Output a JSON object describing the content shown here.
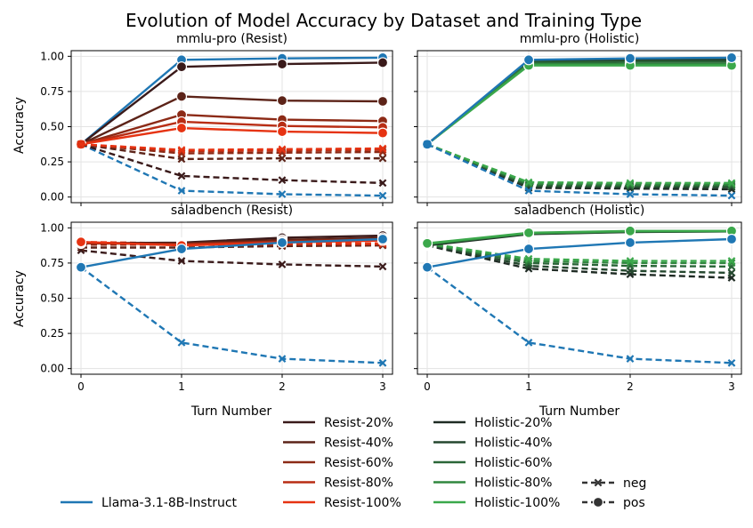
{
  "title": "Evolution of Model Accuracy by Dataset and Training Type",
  "xlabel": "Turn Number",
  "ylabel": "Accuracy",
  "x_ticks": [
    "0",
    "1",
    "2",
    "3"
  ],
  "y_ticks": [
    "0.00",
    "0.25",
    "0.50",
    "0.75",
    "1.00"
  ],
  "colors": {
    "llama": "#1f77b4",
    "resist": [
      "#3a1a1a",
      "#5c2318",
      "#8c2a16",
      "#b82d14",
      "#e63312"
    ],
    "holistic": [
      "#1f2b24",
      "#24472e",
      "#2a6638",
      "#30873f",
      "#3ba84b"
    ],
    "negpos": "#333333"
  },
  "legend": {
    "llama": "Llama-3.1-8B-Instruct",
    "resist": [
      "Resist-20%",
      "Resist-40%",
      "Resist-60%",
      "Resist-80%",
      "Resist-100%"
    ],
    "holistic": [
      "Holistic-20%",
      "Holistic-40%",
      "Holistic-60%",
      "Holistic-80%",
      "Holistic-100%"
    ],
    "neg": "neg",
    "pos": "pos"
  },
  "chart_data": [
    {
      "type": "line",
      "title": "mmlu-pro (Resist)",
      "x": [
        0,
        1,
        2,
        3
      ],
      "ylim": [
        -0.04,
        1.04
      ],
      "series": [
        {
          "name": "Llama-3.1-8B-Instruct pos",
          "group": "llama",
          "idx": 0,
          "kind": "pos",
          "values": [
            0.375,
            0.975,
            0.985,
            0.99
          ]
        },
        {
          "name": "Llama-3.1-8B-Instruct neg",
          "group": "llama",
          "idx": 0,
          "kind": "neg",
          "values": [
            0.375,
            0.045,
            0.02,
            0.01
          ]
        },
        {
          "name": "Resist-20% pos",
          "group": "resist",
          "idx": 0,
          "kind": "pos",
          "values": [
            0.375,
            0.925,
            0.945,
            0.955
          ]
        },
        {
          "name": "Resist-40% pos",
          "group": "resist",
          "idx": 1,
          "kind": "pos",
          "values": [
            0.375,
            0.715,
            0.685,
            0.68
          ]
        },
        {
          "name": "Resist-60% pos",
          "group": "resist",
          "idx": 2,
          "kind": "pos",
          "values": [
            0.375,
            0.585,
            0.55,
            0.54
          ]
        },
        {
          "name": "Resist-80% pos",
          "group": "resist",
          "idx": 3,
          "kind": "pos",
          "values": [
            0.375,
            0.535,
            0.505,
            0.495
          ]
        },
        {
          "name": "Resist-100% pos",
          "group": "resist",
          "idx": 4,
          "kind": "pos",
          "values": [
            0.375,
            0.49,
            0.465,
            0.455
          ]
        },
        {
          "name": "Resist-20% neg",
          "group": "resist",
          "idx": 0,
          "kind": "neg",
          "values": [
            0.375,
            0.15,
            0.12,
            0.1
          ]
        },
        {
          "name": "Resist-40% neg",
          "group": "resist",
          "idx": 1,
          "kind": "neg",
          "values": [
            0.375,
            0.27,
            0.275,
            0.275
          ]
        },
        {
          "name": "Resist-60% neg",
          "group": "resist",
          "idx": 2,
          "kind": "neg",
          "values": [
            0.375,
            0.31,
            0.315,
            0.32
          ]
        },
        {
          "name": "Resist-80% neg",
          "group": "resist",
          "idx": 3,
          "kind": "neg",
          "values": [
            0.375,
            0.325,
            0.33,
            0.335
          ]
        },
        {
          "name": "Resist-100% neg",
          "group": "resist",
          "idx": 4,
          "kind": "neg",
          "values": [
            0.375,
            0.335,
            0.34,
            0.345
          ]
        }
      ]
    },
    {
      "type": "line",
      "title": "mmlu-pro (Holistic)",
      "x": [
        0,
        1,
        2,
        3
      ],
      "ylim": [
        -0.04,
        1.04
      ],
      "series": [
        {
          "name": "Holistic-20% pos",
          "group": "holistic",
          "idx": 0,
          "kind": "pos",
          "values": [
            0.375,
            0.97,
            0.98,
            0.985
          ]
        },
        {
          "name": "Holistic-40% pos",
          "group": "holistic",
          "idx": 1,
          "kind": "pos",
          "values": [
            0.375,
            0.965,
            0.97,
            0.975
          ]
        },
        {
          "name": "Holistic-60% pos",
          "group": "holistic",
          "idx": 2,
          "kind": "pos",
          "values": [
            0.375,
            0.955,
            0.96,
            0.96
          ]
        },
        {
          "name": "Holistic-80% pos",
          "group": "holistic",
          "idx": 3,
          "kind": "pos",
          "values": [
            0.375,
            0.945,
            0.945,
            0.945
          ]
        },
        {
          "name": "Holistic-100% pos",
          "group": "holistic",
          "idx": 4,
          "kind": "pos",
          "values": [
            0.375,
            0.935,
            0.935,
            0.935
          ]
        },
        {
          "name": "Holistic-20% neg",
          "group": "holistic",
          "idx": 0,
          "kind": "neg",
          "values": [
            0.375,
            0.065,
            0.06,
            0.055
          ]
        },
        {
          "name": "Holistic-40% neg",
          "group": "holistic",
          "idx": 1,
          "kind": "neg",
          "values": [
            0.375,
            0.075,
            0.07,
            0.07
          ]
        },
        {
          "name": "Holistic-60% neg",
          "group": "holistic",
          "idx": 2,
          "kind": "neg",
          "values": [
            0.375,
            0.085,
            0.08,
            0.08
          ]
        },
        {
          "name": "Holistic-80% neg",
          "group": "holistic",
          "idx": 3,
          "kind": "neg",
          "values": [
            0.375,
            0.095,
            0.09,
            0.09
          ]
        },
        {
          "name": "Holistic-100% neg",
          "group": "holistic",
          "idx": 4,
          "kind": "neg",
          "values": [
            0.375,
            0.105,
            0.1,
            0.1
          ]
        },
        {
          "name": "Llama-3.1-8B-Instruct pos",
          "group": "llama",
          "idx": 0,
          "kind": "pos",
          "values": [
            0.375,
            0.975,
            0.985,
            0.99
          ]
        },
        {
          "name": "Llama-3.1-8B-Instruct neg",
          "group": "llama",
          "idx": 0,
          "kind": "neg",
          "values": [
            0.375,
            0.045,
            0.02,
            0.01
          ]
        }
      ]
    },
    {
      "type": "line",
      "title": "saladbench (Resist)",
      "x": [
        0,
        1,
        2,
        3
      ],
      "ylim": [
        -0.04,
        1.04
      ],
      "series": [
        {
          "name": "Llama-3.1-8B-Instruct neg",
          "group": "llama",
          "idx": 0,
          "kind": "neg",
          "values": [
            0.72,
            0.185,
            0.07,
            0.04
          ]
        },
        {
          "name": "Resist-20% neg",
          "group": "resist",
          "idx": 0,
          "kind": "neg",
          "values": [
            0.84,
            0.765,
            0.74,
            0.725
          ]
        },
        {
          "name": "Resist-40% neg",
          "group": "resist",
          "idx": 1,
          "kind": "neg",
          "values": [
            0.86,
            0.86,
            0.87,
            0.875
          ]
        },
        {
          "name": "Resist-60% neg",
          "group": "resist",
          "idx": 2,
          "kind": "neg",
          "values": [
            0.88,
            0.88,
            0.88,
            0.88
          ]
        },
        {
          "name": "Resist-80% neg",
          "group": "resist",
          "idx": 3,
          "kind": "neg",
          "values": [
            0.89,
            0.885,
            0.885,
            0.885
          ]
        },
        {
          "name": "Resist-100% neg",
          "group": "resist",
          "idx": 4,
          "kind": "neg",
          "values": [
            0.9,
            0.89,
            0.89,
            0.89
          ]
        },
        {
          "name": "Resist-20% pos",
          "group": "resist",
          "idx": 0,
          "kind": "pos",
          "values": [
            0.89,
            0.895,
            0.93,
            0.945
          ]
        },
        {
          "name": "Resist-40% pos",
          "group": "resist",
          "idx": 1,
          "kind": "pos",
          "values": [
            0.89,
            0.89,
            0.915,
            0.93
          ]
        },
        {
          "name": "Resist-60% pos",
          "group": "resist",
          "idx": 2,
          "kind": "pos",
          "values": [
            0.89,
            0.885,
            0.905,
            0.92
          ]
        },
        {
          "name": "Resist-80% pos",
          "group": "resist",
          "idx": 3,
          "kind": "pos",
          "values": [
            0.895,
            0.88,
            0.9,
            0.915
          ]
        },
        {
          "name": "Resist-100% pos",
          "group": "resist",
          "idx": 4,
          "kind": "pos",
          "values": [
            0.9,
            0.875,
            0.895,
            0.91
          ]
        },
        {
          "name": "Llama-3.1-8B-Instruct pos",
          "group": "llama",
          "idx": 0,
          "kind": "pos",
          "values": [
            0.72,
            0.85,
            0.895,
            0.92
          ]
        }
      ]
    },
    {
      "type": "line",
      "title": "saladbench (Holistic)",
      "x": [
        0,
        1,
        2,
        3
      ],
      "ylim": [
        -0.04,
        1.04
      ],
      "series": [
        {
          "name": "Llama-3.1-8B-Instruct neg",
          "group": "llama",
          "idx": 0,
          "kind": "neg",
          "values": [
            0.72,
            0.185,
            0.07,
            0.04
          ]
        },
        {
          "name": "Holistic-20% neg",
          "group": "holistic",
          "idx": 0,
          "kind": "neg",
          "values": [
            0.875,
            0.71,
            0.67,
            0.645
          ]
        },
        {
          "name": "Holistic-40% neg",
          "group": "holistic",
          "idx": 1,
          "kind": "neg",
          "values": [
            0.88,
            0.73,
            0.695,
            0.68
          ]
        },
        {
          "name": "Holistic-60% neg",
          "group": "holistic",
          "idx": 2,
          "kind": "neg",
          "values": [
            0.885,
            0.75,
            0.73,
            0.725
          ]
        },
        {
          "name": "Holistic-80% neg",
          "group": "holistic",
          "idx": 3,
          "kind": "neg",
          "values": [
            0.885,
            0.765,
            0.75,
            0.75
          ]
        },
        {
          "name": "Holistic-100% neg",
          "group": "holistic",
          "idx": 4,
          "kind": "neg",
          "values": [
            0.89,
            0.78,
            0.765,
            0.765
          ]
        },
        {
          "name": "Holistic-20% pos",
          "group": "holistic",
          "idx": 0,
          "kind": "pos",
          "values": [
            0.875,
            0.955,
            0.97,
            0.975
          ]
        },
        {
          "name": "Holistic-40% pos",
          "group": "holistic",
          "idx": 1,
          "kind": "pos",
          "values": [
            0.88,
            0.958,
            0.972,
            0.975
          ]
        },
        {
          "name": "Holistic-60% pos",
          "group": "holistic",
          "idx": 2,
          "kind": "pos",
          "values": [
            0.885,
            0.96,
            0.974,
            0.976
          ]
        },
        {
          "name": "Holistic-80% pos",
          "group": "holistic",
          "idx": 3,
          "kind": "pos",
          "values": [
            0.885,
            0.962,
            0.976,
            0.977
          ]
        },
        {
          "name": "Holistic-100% pos",
          "group": "holistic",
          "idx": 4,
          "kind": "pos",
          "values": [
            0.89,
            0.965,
            0.978,
            0.978
          ]
        },
        {
          "name": "Llama-3.1-8B-Instruct pos",
          "group": "llama",
          "idx": 0,
          "kind": "pos",
          "values": [
            0.72,
            0.85,
            0.895,
            0.92
          ]
        }
      ]
    }
  ]
}
